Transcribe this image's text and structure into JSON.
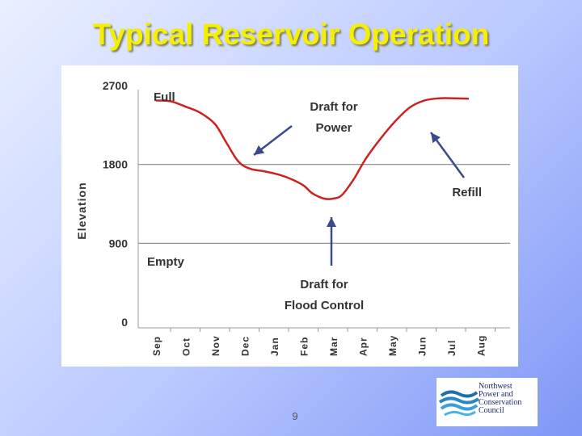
{
  "slide": {
    "title": "Typical Reservoir Operation",
    "page_number": "9"
  },
  "logo": {
    "lines": [
      "Northwest",
      "Power and",
      "Conservation",
      "Council"
    ]
  },
  "chart_data": {
    "type": "line",
    "title": "",
    "xlabel": "",
    "ylabel": "Elevation",
    "categories": [
      "Sep",
      "Oct",
      "Nov",
      "Dec",
      "Jan",
      "Feb",
      "Mar",
      "Apr",
      "May",
      "Jun",
      "Jul",
      "Aug"
    ],
    "yticks": [
      0,
      900,
      1800,
      2700
    ],
    "ylim": [
      0,
      2700
    ],
    "grid_y_at": [
      900,
      1800
    ],
    "series": [
      {
        "color": "#cc2222",
        "points": [
          {
            "x": 0.0,
            "y": 2530
          },
          {
            "x": 0.5,
            "y": 2520
          },
          {
            "x": 1.0,
            "y": 2460
          },
          {
            "x": 1.5,
            "y": 2390
          },
          {
            "x": 2.0,
            "y": 2260
          },
          {
            "x": 2.4,
            "y": 2040
          },
          {
            "x": 2.8,
            "y": 1830
          },
          {
            "x": 3.2,
            "y": 1750
          },
          {
            "x": 3.7,
            "y": 1720
          },
          {
            "x": 4.2,
            "y": 1680
          },
          {
            "x": 4.6,
            "y": 1630
          },
          {
            "x": 5.0,
            "y": 1560
          },
          {
            "x": 5.3,
            "y": 1470
          },
          {
            "x": 5.7,
            "y": 1410
          },
          {
            "x": 6.0,
            "y": 1410
          },
          {
            "x": 6.3,
            "y": 1450
          },
          {
            "x": 6.7,
            "y": 1630
          },
          {
            "x": 7.1,
            "y": 1860
          },
          {
            "x": 7.6,
            "y": 2090
          },
          {
            "x": 8.1,
            "y": 2290
          },
          {
            "x": 8.6,
            "y": 2450
          },
          {
            "x": 9.1,
            "y": 2530
          },
          {
            "x": 9.6,
            "y": 2555
          },
          {
            "x": 10.1,
            "y": 2555
          },
          {
            "x": 10.6,
            "y": 2550
          }
        ]
      }
    ],
    "annotations": [
      {
        "lines": [
          "Full"
        ]
      },
      {
        "lines": [
          "Draft for",
          "Power"
        ]
      },
      {
        "lines": [
          "Refill"
        ]
      },
      {
        "lines": [
          "Empty"
        ]
      },
      {
        "lines": [
          "Draft for",
          "Flood Control"
        ]
      }
    ],
    "arrow_color": "#3a4a8a"
  }
}
